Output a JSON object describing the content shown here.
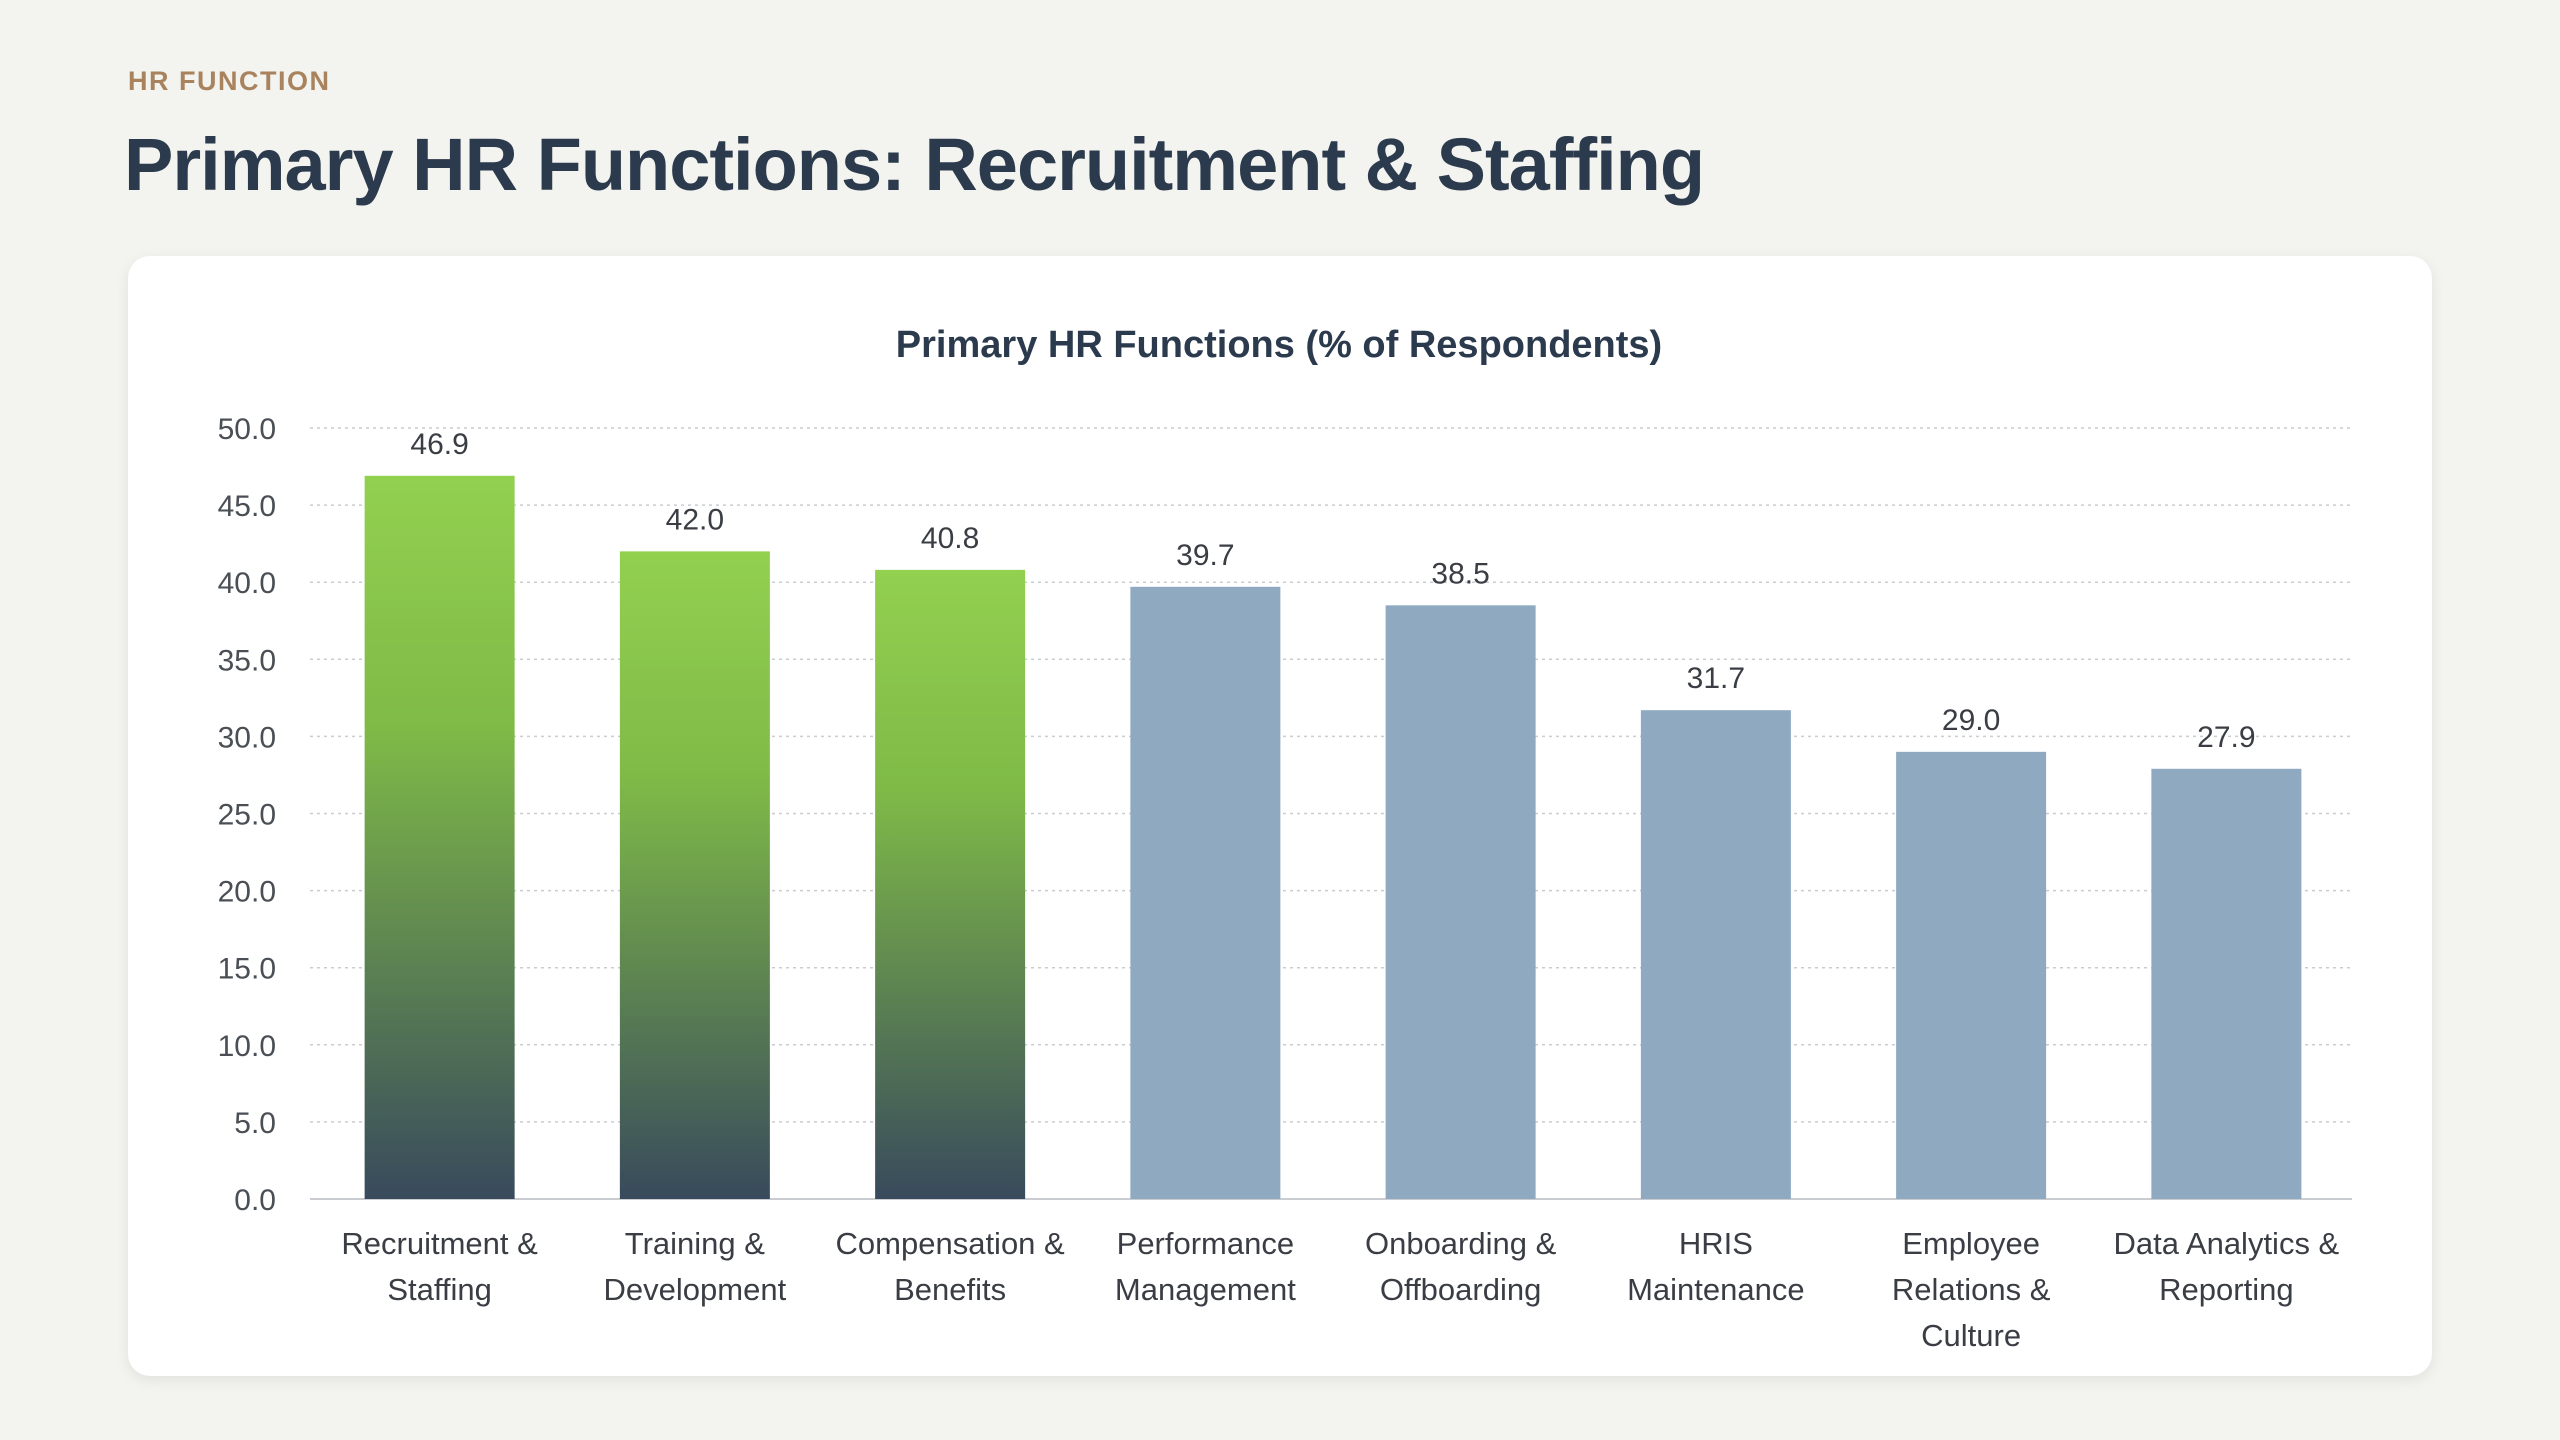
{
  "header": {
    "eyebrow": "HR FUNCTION",
    "title": "Primary HR Functions: Recruitment & Staffing"
  },
  "colors": {
    "highlight_top": "#92d050",
    "highlight_bottom": "#384a5c",
    "base_bar": "#8fa9c1",
    "grid": "#c9ccd1"
  },
  "chart_data": {
    "type": "bar",
    "title": "Primary HR Functions (% of Respondents)",
    "xlabel": "",
    "ylabel": "",
    "ylim": [
      0,
      50
    ],
    "ytick_step": 5,
    "grid": true,
    "categories": [
      [
        "Recruitment &",
        "Staffing"
      ],
      [
        "Training &",
        "Development"
      ],
      [
        "Compensation &",
        "Benefits"
      ],
      [
        "Performance",
        "Management"
      ],
      [
        "Onboarding &",
        "Offboarding"
      ],
      [
        "HRIS",
        "Maintenance"
      ],
      [
        "Employee",
        "Relations &",
        "Culture"
      ],
      [
        "Data Analytics &",
        "Reporting"
      ]
    ],
    "values": [
      46.9,
      42.0,
      40.8,
      39.7,
      38.5,
      31.7,
      29.0,
      27.9
    ],
    "highlighted": [
      true,
      true,
      true,
      false,
      false,
      false,
      false,
      false
    ]
  }
}
